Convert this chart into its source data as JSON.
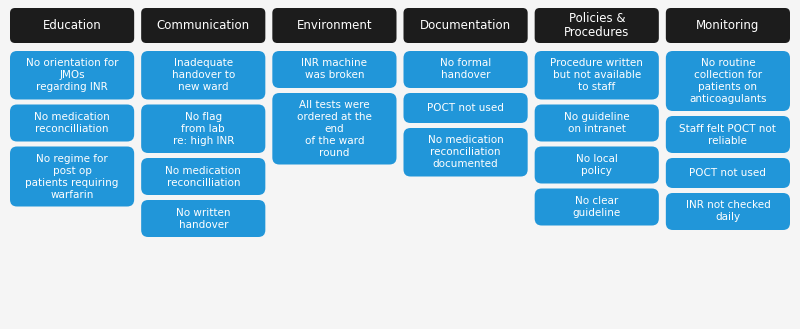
{
  "columns": [
    {
      "header": "Education",
      "items": [
        "No orientation for\nJMOs\nregarding INR",
        "No medication\nreconcilliation",
        "No regime for\npost op\npatients requiring\nwarfarin"
      ]
    },
    {
      "header": "Communication",
      "items": [
        "Inadequate\nhandover to\nnew ward",
        "No flag\nfrom lab\nre: high INR",
        "No medication\nreconcilliation",
        "No written\nhandover"
      ]
    },
    {
      "header": "Environment",
      "items": [
        "INR machine\nwas broken",
        "All tests were\nordered at the\nend\nof the ward\nround"
      ]
    },
    {
      "header": "Documentation",
      "items": [
        "No formal\nhandover",
        "POCT not used",
        "No medication\nreconciliation\ndocumented"
      ]
    },
    {
      "header": "Policies &\nProcedures",
      "items": [
        "Procedure written\nbut not available\nto staff",
        "No guideline\non intranet",
        "No local\npolicy",
        "No clear\nguideline"
      ]
    },
    {
      "header": "Monitoring",
      "items": [
        "No routine\ncollection for\npatients on\nanticoagulants",
        "Staff felt POCT not\nreliable",
        "POCT not used",
        "INR not checked\ndaily"
      ]
    }
  ],
  "header_bg": "#1c1c1c",
  "header_fg": "#ffffff",
  "item_bg": "#2196d9",
  "item_fg": "#ffffff",
  "bg_color": "#f5f5f5",
  "header_fontsize": 8.5,
  "item_fontsize": 7.5,
  "fig_width": 8.0,
  "fig_height": 3.29,
  "dpi": 100
}
